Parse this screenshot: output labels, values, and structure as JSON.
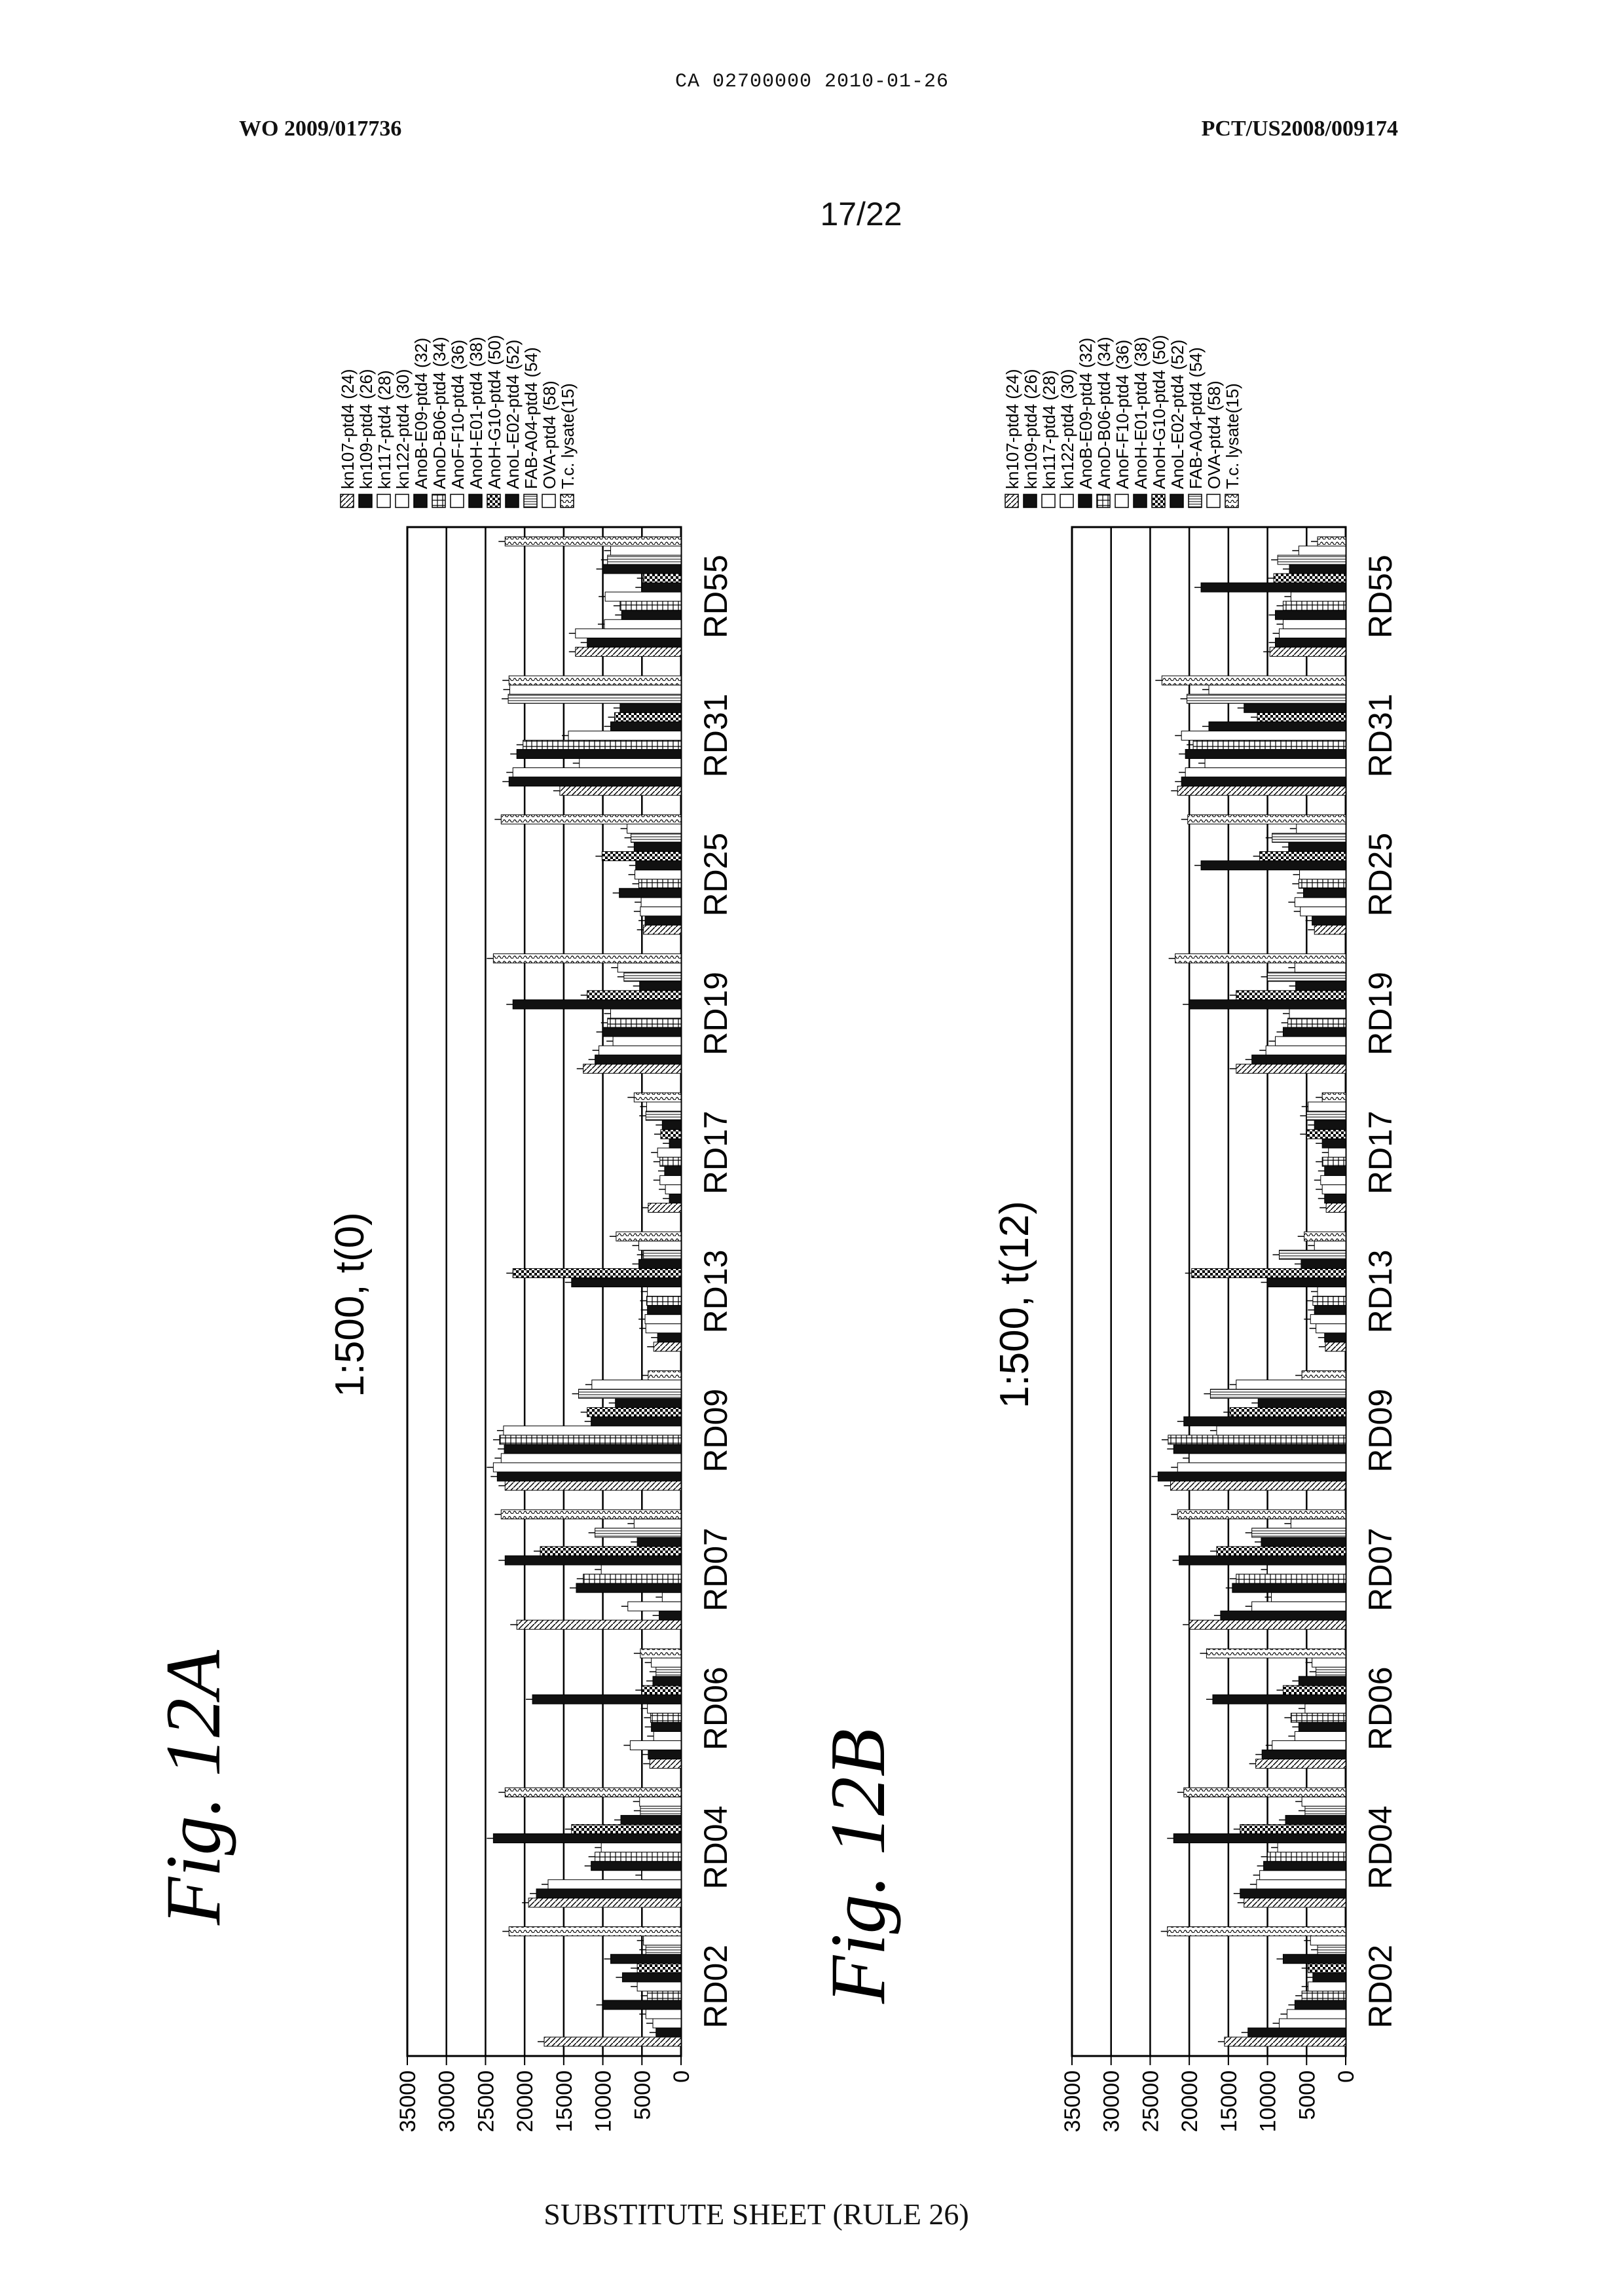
{
  "header": {
    "ca_line": "CA 02700000 2010-01-26",
    "wo_number": "WO 2009/017736",
    "pct_number": "PCT/US2008/009174",
    "sheet": "17/22"
  },
  "footer": {
    "text": "SUBSTITUTE SHEET (RULE 26)"
  },
  "chart_data": [
    {
      "type": "bar",
      "figure_label": "Fig. 12A",
      "title": "1:500, t(0)",
      "orientation": "rotated 90° counter-clockwise on page",
      "ylim": [
        0,
        35000
      ],
      "yticks": [
        "35000",
        "30000",
        "25000",
        "20000",
        "15000",
        "10000",
        "5000",
        "0"
      ],
      "grid": true,
      "legend_position": "right",
      "categories": [
        "RD02",
        "RD04",
        "RD06",
        "RD07",
        "RD09",
        "RD13",
        "RD17",
        "RD19",
        "RD25",
        "RD31",
        "RD55"
      ],
      "series": [
        {
          "name": "kn107-ptd4 (24)",
          "values": [
            17500,
            19500,
            4000,
            21000,
            22500,
            3500,
            4200,
            12500,
            4800,
            15500,
            13500
          ]
        },
        {
          "name": "kn109-ptd4 (26)",
          "values": [
            3200,
            18500,
            4200,
            2800,
            23500,
            3000,
            1500,
            11000,
            4600,
            22000,
            12000
          ]
        },
        {
          "name": "kn117-ptd4 (28)",
          "values": [
            3600,
            17000,
            6500,
            6800,
            24000,
            4500,
            2000,
            10500,
            5200,
            21500,
            13500
          ]
        },
        {
          "name": "kn122-ptd4 (30)",
          "values": [
            4500,
            5000,
            3500,
            2400,
            23000,
            4600,
            2700,
            8700,
            5100,
            13000,
            9800
          ]
        },
        {
          "name": "AnoB-E09-ptd4 (32)",
          "values": [
            10000,
            11500,
            3800,
            13400,
            22600,
            4300,
            2100,
            10000,
            7900,
            21000,
            7600
          ]
        },
        {
          "name": "AnoD-B06-ptd4 (34)",
          "values": [
            4300,
            11000,
            3900,
            12500,
            23200,
            4400,
            2700,
            9400,
            5400,
            20200,
            7800
          ]
        },
        {
          "name": "AnoF-F10-ptd4 (36)",
          "values": [
            5600,
            10200,
            4300,
            10200,
            22700,
            4300,
            3000,
            9000,
            5900,
            14400,
            9700
          ]
        },
        {
          "name": "AnoH-E01-ptd4 (38)",
          "values": [
            7500,
            24000,
            19000,
            22500,
            11500,
            14000,
            1500,
            21500,
            5800,
            9000,
            5000
          ]
        },
        {
          "name": "AnoH-G10-ptd4 (50)",
          "values": [
            5600,
            14000,
            5000,
            18000,
            12000,
            21500,
            2600,
            12000,
            10100,
            8500,
            4800
          ]
        },
        {
          "name": "AnoL-E02-ptd4 (52)",
          "values": [
            9000,
            7700,
            3600,
            5600,
            8400,
            5400,
            2400,
            5300,
            6000,
            7800,
            10000
          ]
        },
        {
          "name": "FAB-A04-ptd4 (54)",
          "values": [
            4500,
            5200,
            3200,
            11000,
            13100,
            4800,
            4500,
            7300,
            6400,
            22100,
            9400
          ]
        },
        {
          "name": "OVA-ptd4 (58)",
          "values": [
            4800,
            5300,
            3800,
            6000,
            11400,
            5400,
            4400,
            8100,
            6900,
            21900,
            9000
          ]
        },
        {
          "name": "T.c. lysate(15)",
          "values": [
            22000,
            22500,
            5200,
            23000,
            4200,
            8300,
            6000,
            24000,
            23000,
            22000,
            22500
          ]
        }
      ]
    },
    {
      "type": "bar",
      "figure_label": "Fig. 12B",
      "title": "1:500, t(12)",
      "orientation": "rotated 90° counter-clockwise on page",
      "ylim": [
        0,
        35000
      ],
      "yticks": [
        "35000",
        "30000",
        "25000",
        "20000",
        "15000",
        "10000",
        "5000",
        "0"
      ],
      "grid": true,
      "legend_position": "right",
      "categories": [
        "RD02",
        "RD04",
        "RD06",
        "RD07",
        "RD09",
        "RD13",
        "RD17",
        "RD19",
        "RD25",
        "RD31",
        "RD55"
      ],
      "series": [
        {
          "name": "kn107-ptd4 (24)",
          "values": [
            15500,
            13000,
            11500,
            20000,
            22400,
            2600,
            2500,
            14000,
            4000,
            21500,
            9700
          ]
        },
        {
          "name": "kn109-ptd4 (26)",
          "values": [
            12500,
            13500,
            10700,
            16000,
            24000,
            2700,
            2700,
            12000,
            4300,
            21000,
            9000
          ]
        },
        {
          "name": "kn117-ptd4 (28)",
          "values": [
            8500,
            11400,
            9400,
            12000,
            21500,
            3800,
            3000,
            10200,
            5800,
            20500,
            8500
          ]
        },
        {
          "name": "kn122-ptd4 (30)",
          "values": [
            7500,
            11000,
            6500,
            9500,
            20000,
            4500,
            3200,
            9000,
            6500,
            18000,
            8000
          ]
        },
        {
          "name": "AnoB-E09-ptd4 (32)",
          "values": [
            6500,
            10500,
            6000,
            14500,
            22000,
            4000,
            2700,
            8000,
            5400,
            20500,
            9000
          ]
        },
        {
          "name": "AnoD-B06-ptd4 (34)",
          "values": [
            5600,
            10000,
            7000,
            14000,
            22700,
            4200,
            3000,
            7400,
            6000,
            19500,
            8000
          ]
        },
        {
          "name": "AnoF-F10-ptd4 (36)",
          "values": [
            4800,
            8700,
            5200,
            10000,
            16500,
            3600,
            2200,
            7200,
            5900,
            21000,
            7000
          ]
        },
        {
          "name": "AnoH-E01-ptd4 (38)",
          "values": [
            4200,
            22000,
            17000,
            21300,
            20700,
            10000,
            3000,
            20000,
            18500,
            17500,
            18500
          ]
        },
        {
          "name": "AnoH-G10-ptd4 (50)",
          "values": [
            4800,
            13500,
            8000,
            16500,
            14800,
            19700,
            5000,
            14000,
            11000,
            11300,
            9200
          ]
        },
        {
          "name": "AnoL-E02-ptd4 (52)",
          "values": [
            8000,
            7700,
            6000,
            10800,
            11200,
            5700,
            4000,
            6400,
            7300,
            13000,
            7200
          ]
        },
        {
          "name": "FAB-A04-ptd4 (54)",
          "values": [
            3600,
            5200,
            3800,
            12000,
            17300,
            8500,
            5000,
            10000,
            9400,
            20300,
            8700
          ]
        },
        {
          "name": "OVA-ptd4 (58)",
          "values": [
            4500,
            5600,
            4300,
            7000,
            14000,
            4000,
            4800,
            6500,
            6300,
            17500,
            6000
          ]
        },
        {
          "name": "T.c. lysate(15)",
          "values": [
            22800,
            20700,
            17800,
            21500,
            5600,
            5300,
            3000,
            21800,
            20200,
            23500,
            3600
          ]
        }
      ]
    }
  ]
}
